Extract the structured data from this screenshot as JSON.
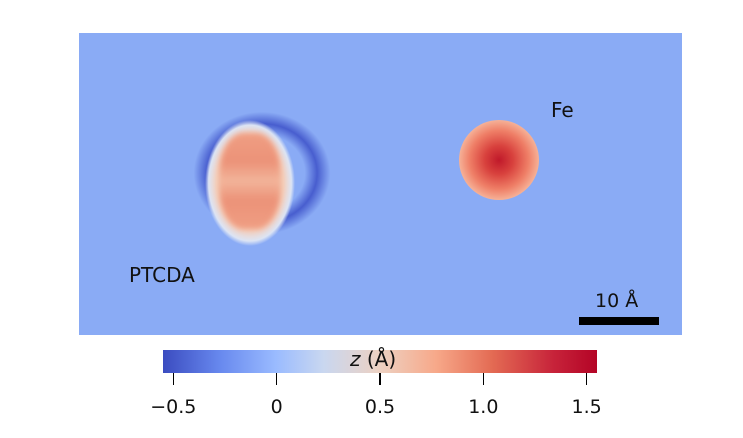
{
  "image": {
    "labels": {
      "fe": "Fe",
      "ptcda": "PTCDA",
      "scale": "10 Å"
    }
  },
  "colorbar": {
    "variable": "z",
    "unit": "(Å)",
    "ticks": [
      "−0.5",
      "0",
      "0.5",
      "1.0",
      "1.5"
    ],
    "range": [
      -0.55,
      1.55
    ],
    "colors": [
      "#3b4cc0",
      "#9abbff",
      "#edd1c2",
      "#e36a53",
      "#b40426"
    ]
  }
}
